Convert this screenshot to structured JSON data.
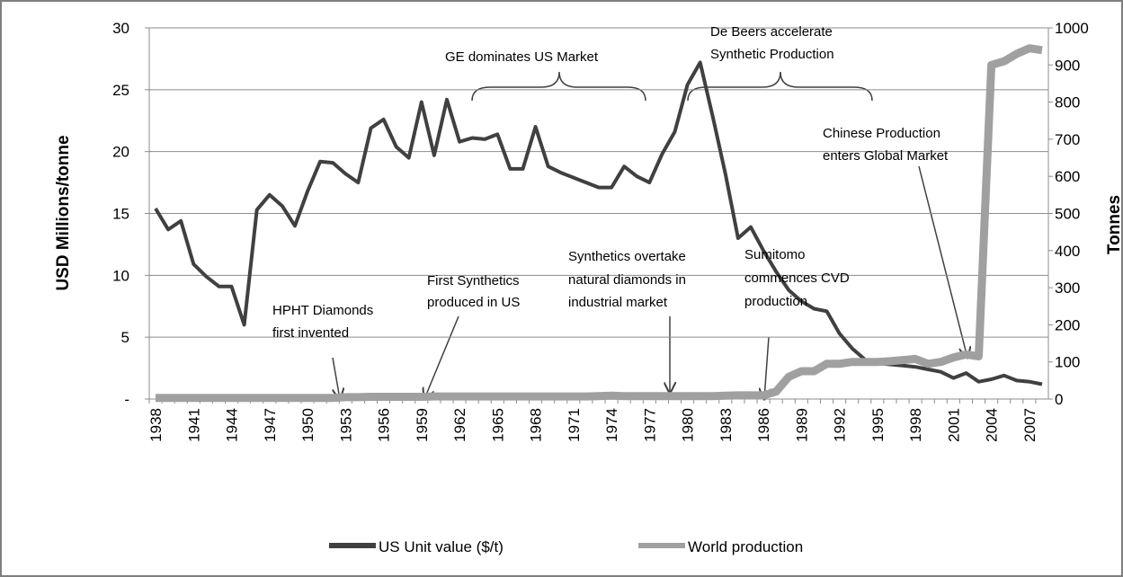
{
  "chart_data": {
    "type": "line",
    "categories": [
      1938,
      null,
      null,
      1941,
      null,
      null,
      1944,
      null,
      null,
      1947,
      null,
      null,
      1950,
      null,
      null,
      1953,
      null,
      null,
      1956,
      null,
      null,
      1959,
      null,
      null,
      1962,
      null,
      null,
      1965,
      null,
      null,
      1968,
      null,
      null,
      1971,
      null,
      null,
      1974,
      null,
      null,
      1977,
      null,
      null,
      1980,
      null,
      null,
      1983,
      null,
      null,
      1986,
      null,
      null,
      1989,
      null,
      null,
      1992,
      null,
      null,
      1995,
      null,
      null,
      1998,
      null,
      null,
      2001,
      null,
      null,
      2004,
      null,
      null,
      2007,
      null
    ],
    "series": [
      {
        "name": "US Unit value ($/t)",
        "color": "#404040",
        "axis": "y",
        "values": [
          15.4,
          13.7,
          14.4,
          10.9,
          9.9,
          9.1,
          9.1,
          6.0,
          15.3,
          16.5,
          15.6,
          14.0,
          16.8,
          19.2,
          19.1,
          18.2,
          17.5,
          21.9,
          22.6,
          20.4,
          19.5,
          24.0,
          19.7,
          24.2,
          20.8,
          21.1,
          21.0,
          21.4,
          18.6,
          18.6,
          22.0,
          18.8,
          18.3,
          17.9,
          17.5,
          17.1,
          17.1,
          18.8,
          18.0,
          17.5,
          19.8,
          21.6,
          25.4,
          27.2,
          22.8,
          18.2,
          13.0,
          13.9,
          12.0,
          10.3,
          8.8,
          7.9,
          7.3,
          7.1,
          5.3,
          4.1,
          3.2,
          2.9,
          2.8,
          2.7,
          2.6,
          2.4,
          2.2,
          1.7,
          2.1,
          1.4,
          1.6,
          1.9,
          1.5,
          1.4,
          1.2
        ]
      },
      {
        "name": "World production",
        "color": "#a0a0a0",
        "axis": "y2",
        "values": [
          3,
          3,
          3,
          3,
          3,
          3,
          3,
          3,
          3,
          3,
          3,
          3,
          3,
          3,
          3,
          5,
          5,
          6,
          6,
          6,
          6,
          6,
          7,
          7,
          7,
          7,
          7,
          7,
          7,
          7,
          7,
          7,
          7,
          7,
          7,
          8,
          9,
          8,
          8,
          8,
          8,
          8,
          8,
          8,
          8,
          9,
          10,
          10,
          10,
          20,
          60,
          75,
          75,
          95,
          95,
          100,
          100,
          100,
          102,
          105,
          108,
          95,
          100,
          112,
          120,
          115,
          900,
          910,
          930,
          945,
          940
        ]
      }
    ],
    "ylabel": "USD Millions/tonne",
    "y2label": "Tonnes",
    "ylim": [
      0,
      30
    ],
    "yticks": [
      {
        "value": 0,
        "label": "-"
      },
      5,
      10,
      15,
      20,
      25,
      30
    ],
    "y2lim": [
      0,
      1000
    ],
    "y2ticks": [
      0,
      100,
      200,
      300,
      400,
      500,
      600,
      700,
      800,
      900,
      1000
    ],
    "grid": true,
    "legend": "bottom",
    "annotations": [
      {
        "text": [
          "HPHT Diamonds",
          "first invented"
        ]
      },
      {
        "text": [
          "First Synthetics",
          "produced in US"
        ]
      },
      {
        "text": [
          "Synthetics  overtake",
          "natural  diamonds in",
          "industrial market"
        ]
      },
      {
        "text": [
          "Sumitomo",
          "commences CVD",
          "production"
        ]
      },
      {
        "text": [
          "Chinese Production",
          "enters Global Market"
        ]
      },
      {
        "text": [
          "GE  dominates US Market"
        ]
      },
      {
        "text": [
          "De Beers accelerate",
          "Synthetic Production"
        ]
      }
    ]
  }
}
